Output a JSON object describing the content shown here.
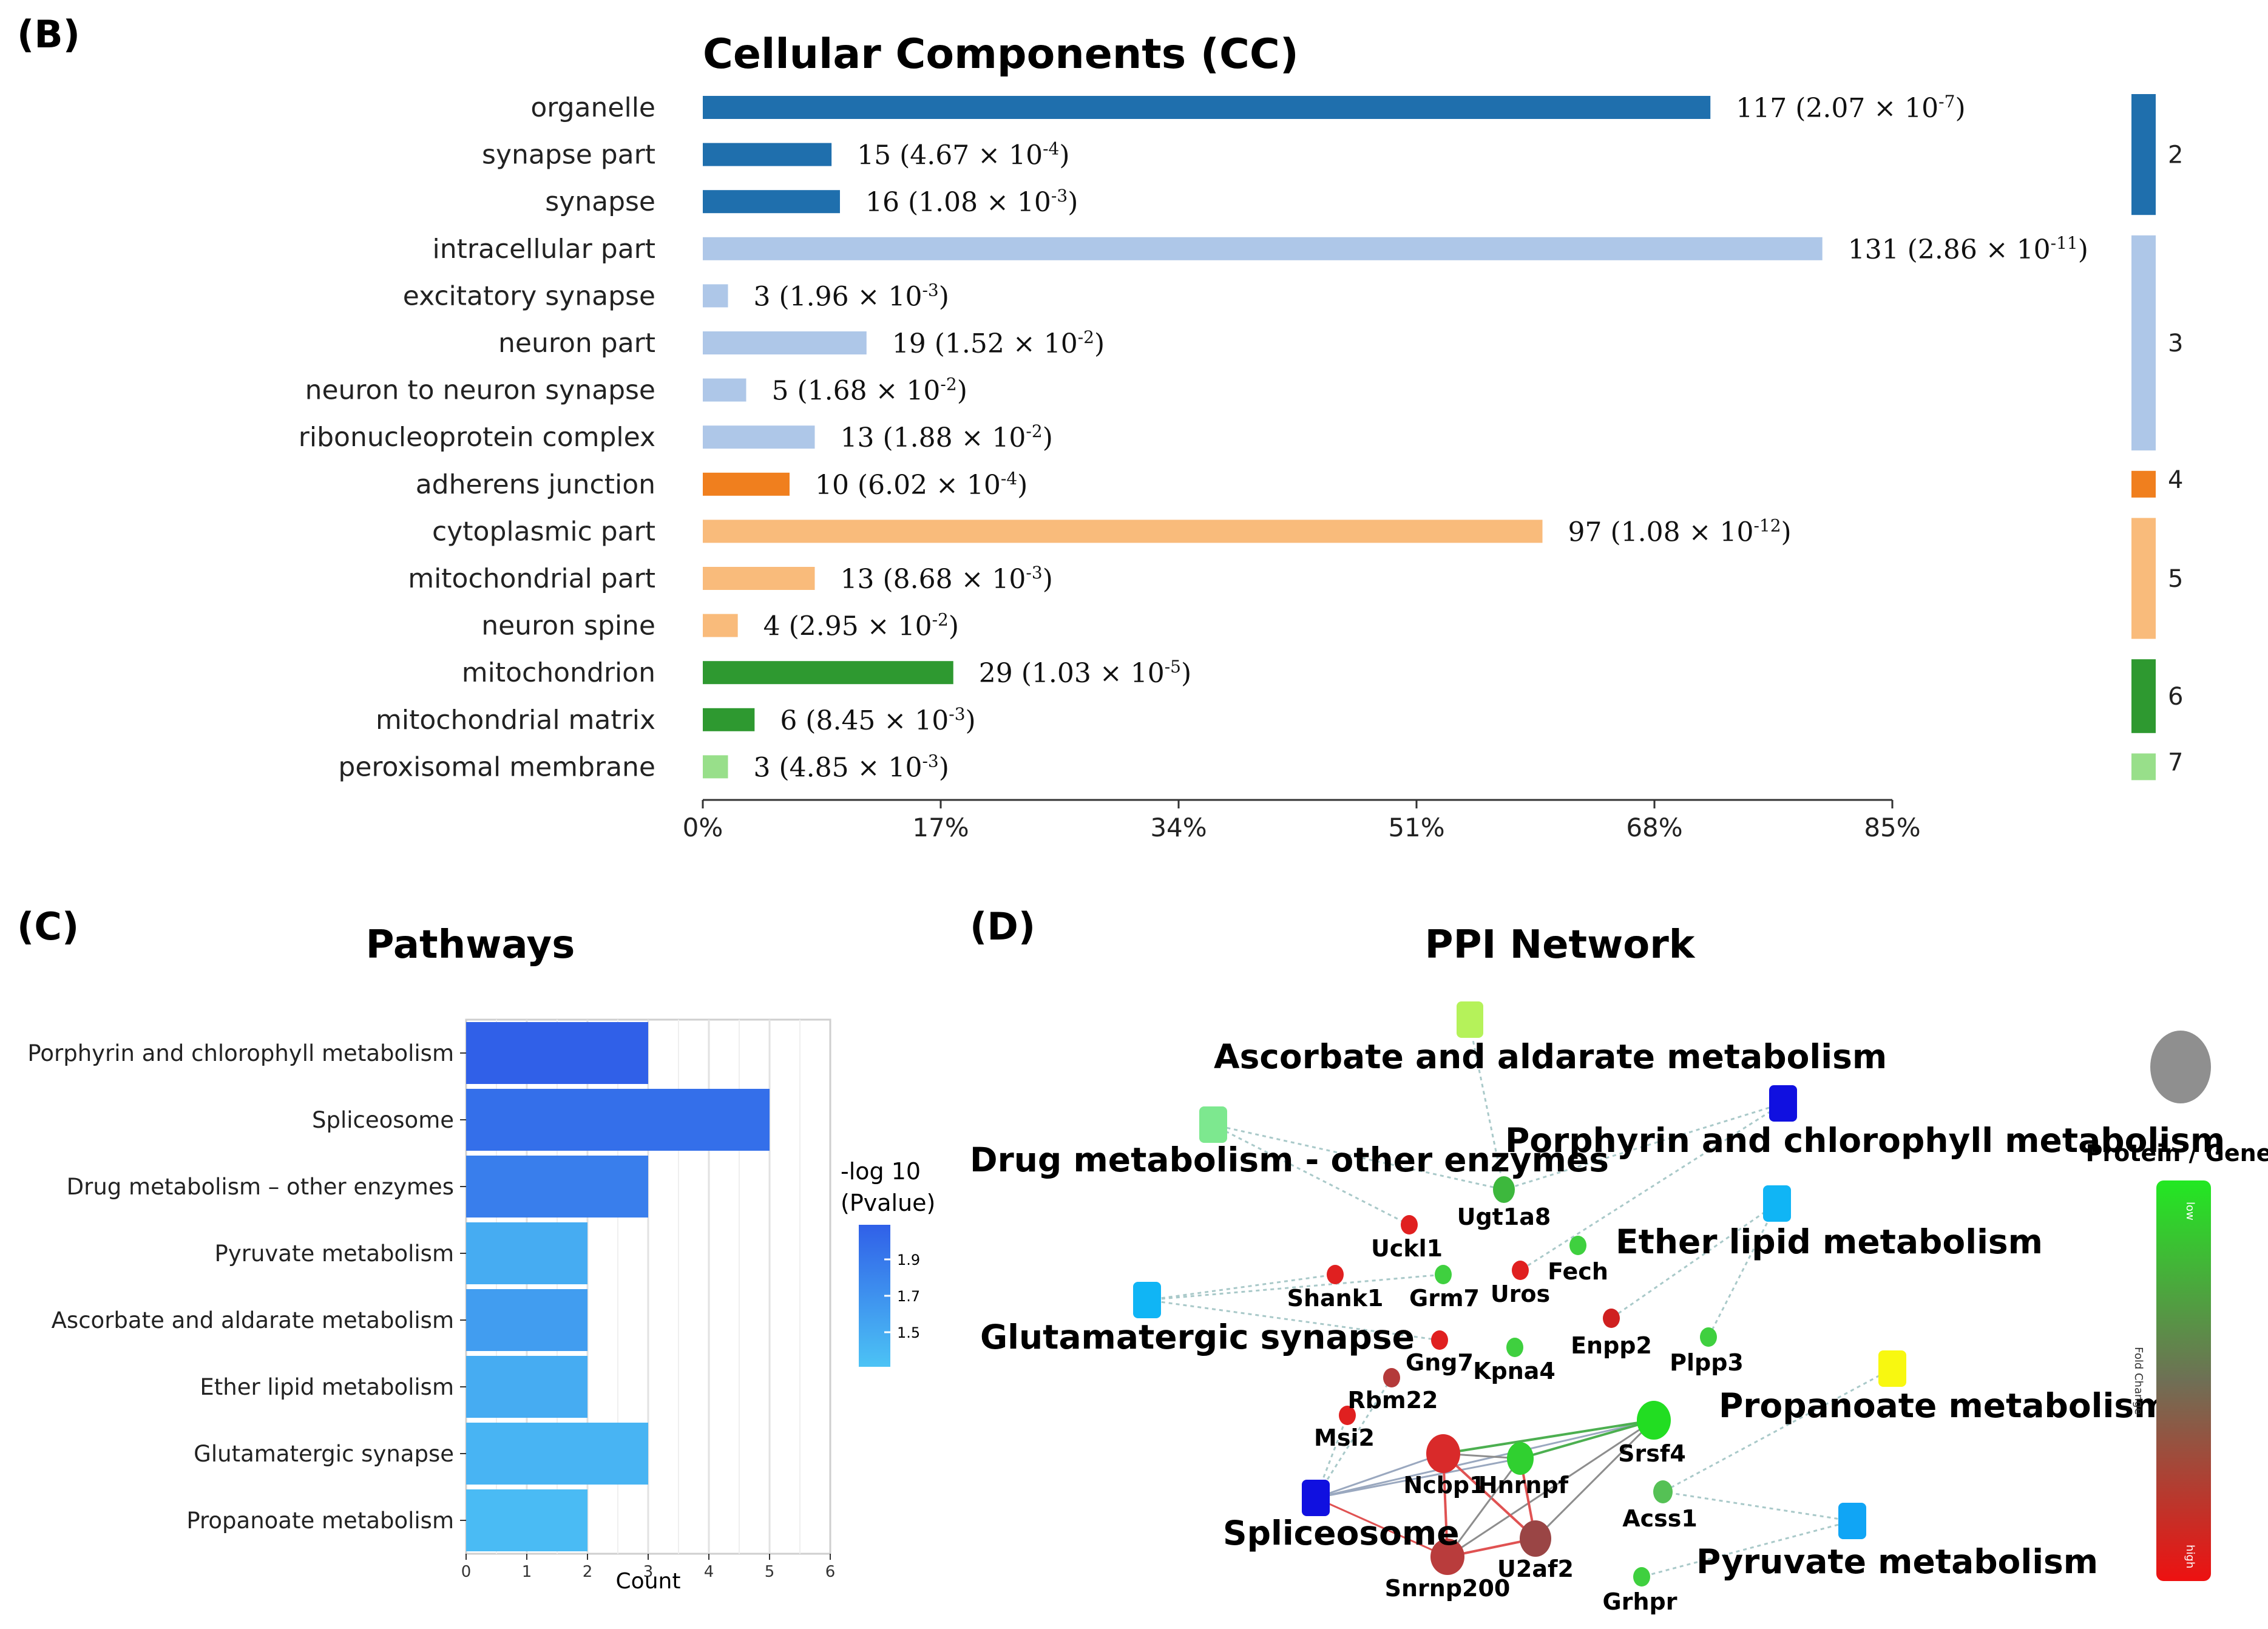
{
  "panel_b": {
    "letter": "(B)",
    "chart_data": {
      "type": "bar",
      "orientation": "horizontal",
      "title": "Cellular Components (CC)",
      "xlabel": "",
      "ylabel": "",
      "xlim": [
        0,
        85
      ],
      "x_tick_labels": [
        "0%",
        "17%",
        "34%",
        "51%",
        "68%",
        "85%"
      ],
      "categories": [
        "organelle",
        "synapse part",
        "synapse",
        "intracellular part",
        "excitatory synapse",
        "neuron part",
        "neuron to neuron synapse",
        "ribonucleoprotein complex",
        "adherens junction",
        "cytoplasmic part",
        "mitochondrial part",
        "neuron spine",
        "mitochondrion",
        "mitochondrial matrix",
        "peroxisomal membrane"
      ],
      "values": [
        72,
        9.2,
        9.8,
        80,
        1.8,
        11.7,
        3.1,
        8,
        6.2,
        60,
        8,
        2.5,
        17.9,
        3.7,
        1.8
      ],
      "annotations": [
        {
          "count": "117",
          "mant": "2.07",
          "exp": "-7"
        },
        {
          "count": "15",
          "mant": "4.67",
          "exp": "-4"
        },
        {
          "count": "16",
          "mant": "1.08",
          "exp": "-3"
        },
        {
          "count": "131",
          "mant": "2.86",
          "exp": "-11"
        },
        {
          "count": "3",
          "mant": "1.96",
          "exp": "-3"
        },
        {
          "count": "19",
          "mant": "1.52",
          "exp": "-2"
        },
        {
          "count": "5",
          "mant": "1.68",
          "exp": "-2"
        },
        {
          "count": "13",
          "mant": "1.88",
          "exp": "-2"
        },
        {
          "count": "10",
          "mant": "6.02",
          "exp": "-4"
        },
        {
          "count": "97",
          "mant": "1.08",
          "exp": "-12"
        },
        {
          "count": "13",
          "mant": "8.68",
          "exp": "-3"
        },
        {
          "count": "4",
          "mant": "2.95",
          "exp": "-2"
        },
        {
          "count": "29",
          "mant": "1.03",
          "exp": "-5"
        },
        {
          "count": "6",
          "mant": "8.45",
          "exp": "-3"
        },
        {
          "count": "3",
          "mant": "4.85",
          "exp": "-3"
        }
      ],
      "cluster": [
        2,
        2,
        2,
        3,
        3,
        3,
        3,
        3,
        4,
        5,
        5,
        5,
        6,
        6,
        7
      ],
      "clusters": [
        {
          "label": "2",
          "start": 0,
          "end": 2,
          "color": "#1f6fad"
        },
        {
          "label": "3",
          "start": 3,
          "end": 7,
          "color": "#aec7e8"
        },
        {
          "label": "4",
          "start": 8,
          "end": 8,
          "color": "#f07f1e"
        },
        {
          "label": "5",
          "start": 9,
          "end": 11,
          "color": "#f9bb7b"
        },
        {
          "label": "6",
          "start": 12,
          "end": 13,
          "color": "#2e9930"
        },
        {
          "label": "7",
          "start": 14,
          "end": 14,
          "color": "#98df8a"
        }
      ]
    }
  },
  "panel_c": {
    "letter": "(C)",
    "chart_data": {
      "type": "bar",
      "orientation": "horizontal",
      "title": "Pathways",
      "xlabel": "Count",
      "ylabel": "",
      "xlim": [
        0,
        6
      ],
      "x_ticks": [
        0,
        1,
        2,
        3,
        4,
        5,
        6
      ],
      "categories": [
        "Porphyrin and chlorophyll metabolism",
        "Spliceosome",
        "Drug metabolism – other enzymes",
        "Pyruvate metabolism",
        "Ascorbate and aldarate metabolism",
        "Ether lipid metabolism",
        "Glutamatergic synapse",
        "Propanoate metabolism"
      ],
      "values": [
        3,
        5,
        3,
        2,
        2,
        2,
        3,
        2
      ],
      "neg_log10_pvalue": [
        2.05,
        1.95,
        1.85,
        1.55,
        1.65,
        1.55,
        1.5,
        1.45
      ],
      "legend": {
        "title_line1": "-log 10",
        "title_line2": "(Pvalue)",
        "ticks": [
          "1.9",
          "1.7",
          "1.5"
        ]
      }
    }
  },
  "panel_d": {
    "letter": "(D)",
    "title": "PPI Network",
    "pathways": [
      "Ascorbate and aldarate metabolism",
      "Porphyrin and chlorophyll metabolism",
      "Drug metabolism - other enzymes",
      "Ether lipid metabolism",
      "Glutamatergic synapse",
      "Propanoate metabolism",
      "Spliceosome",
      "Pyruvate metabolism"
    ],
    "genes": [
      "Ugt1a8",
      "Uckl1",
      "Fech",
      "Shank1",
      "Grm7",
      "Uros",
      "Enpp2",
      "Plpp3",
      "Gng7",
      "Kpna4",
      "Rbm22",
      "Msi2",
      "Srsf4",
      "Ncbp1",
      "Hnrnpf",
      "Acss1",
      "Snrnp200",
      "U2af2",
      "Grhpr"
    ],
    "legend": {
      "node_label": "Protein / Gene",
      "scale_top": "low",
      "scale_bottom": "high",
      "scale_axis": "Fold Change"
    }
  }
}
